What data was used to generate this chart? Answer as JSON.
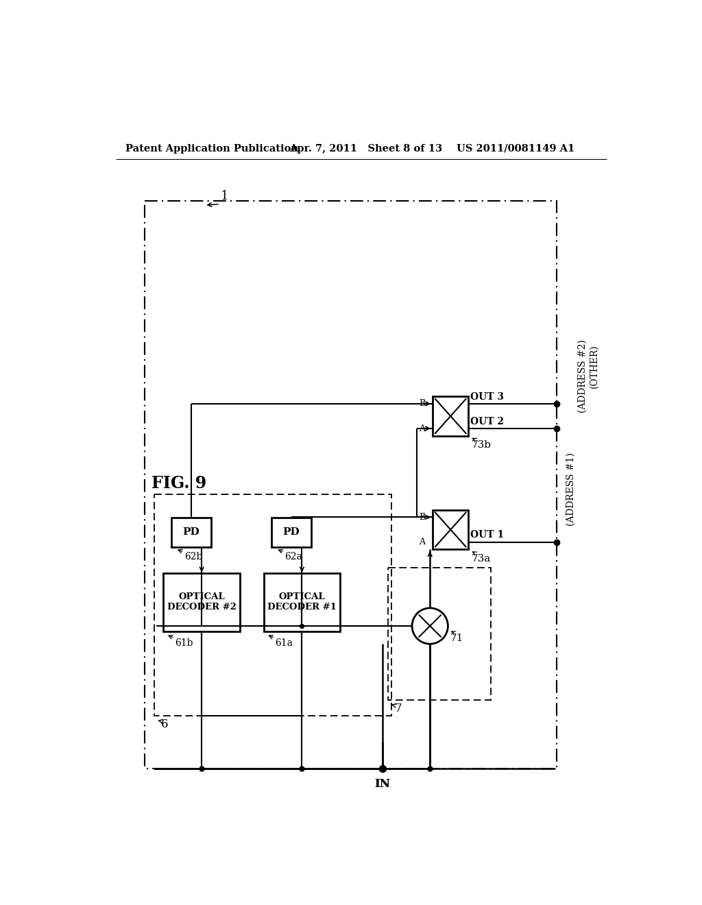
{
  "bg_color": "#ffffff",
  "header_left": "Patent Application Publication",
  "header_mid": "Apr. 7, 2011   Sheet 8 of 13",
  "header_right": "US 2011/0081149 A1",
  "fig_label": "FIG. 9",
  "main_box_label": "1",
  "inner_box_label": "6",
  "inner_box2_label": "7",
  "optical_decoder1_label": "OPTICAL\nDECODER #1",
  "optical_decoder1_ref": "61a",
  "optical_decoder2_label": "OPTICAL\nDECODER #2",
  "optical_decoder2_ref": "61b",
  "pd1_label": "PD",
  "pd1_ref": "62a",
  "pd2_label": "PD",
  "pd2_ref": "62b",
  "splitter_ref": "71",
  "switch1_ref": "73a",
  "switch2_ref": "73b",
  "out1_label": "OUT 1",
  "out2_label": "OUT 2",
  "out3_label": "OUT 3",
  "out1_annot": "(ADDRESS #1)",
  "out2_annot": "(ADDRESS #2)",
  "out3_annot": "(OTHER)",
  "in_label": "IN",
  "ref6_label": "6",
  "ref7_label": "7"
}
